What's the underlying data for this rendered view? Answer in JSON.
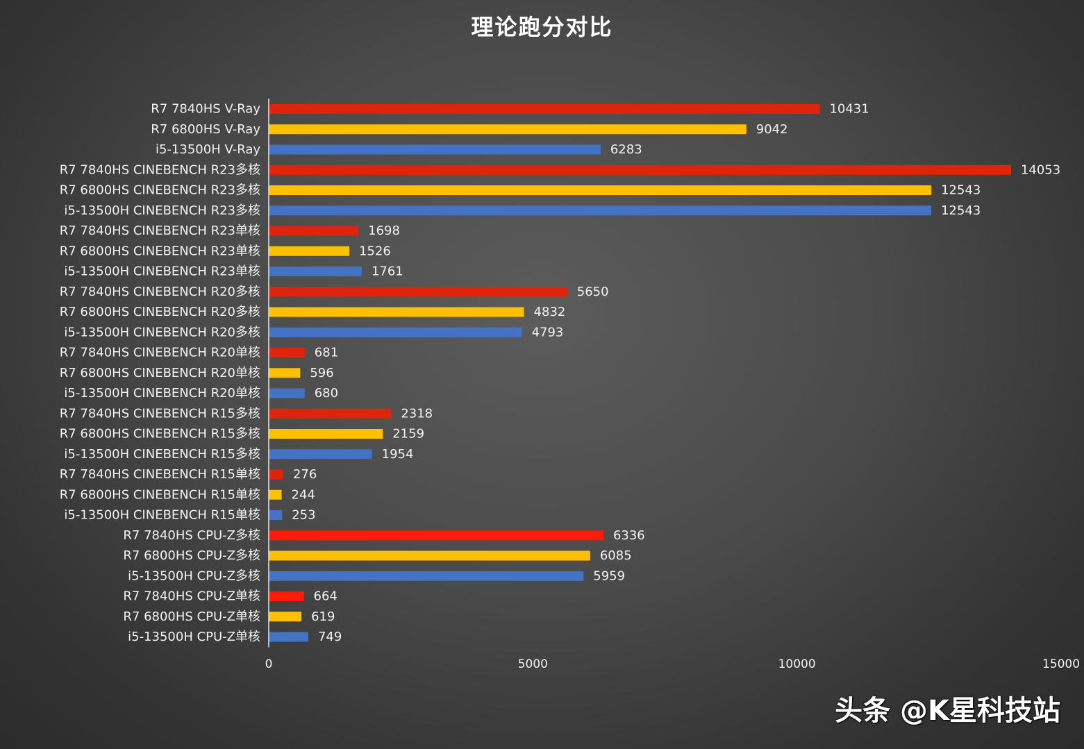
{
  "chart_data": {
    "type": "bar",
    "orientation": "horizontal",
    "title": "理论跑分对比",
    "xlim": [
      0,
      15000
    ],
    "x_ticks": [
      "0",
      "5000",
      "10000",
      "15000"
    ],
    "grid": false,
    "legend": "none",
    "colors": {
      "R7 7840HS": "#e0240c",
      "R7 7840HS (CPU-Z)": "#ff1a0a",
      "R7 6800HS": "#ffc000",
      "i5-13500H": "#4472c4"
    },
    "bars": [
      {
        "label": "R7 7840HS V-Ray",
        "value": 10431,
        "color": "#e0240c"
      },
      {
        "label": "R7 6800HS V-Ray",
        "value": 9042,
        "color": "#ffc000"
      },
      {
        "label": "i5-13500H V-Ray",
        "value": 6283,
        "color": "#4472c4"
      },
      {
        "label": "R7 7840HS CINEBENCH R23多核",
        "value": 14053,
        "color": "#e0240c"
      },
      {
        "label": "R7 6800HS CINEBENCH R23多核",
        "value": 12543,
        "color": "#ffc000"
      },
      {
        "label": "i5-13500H CINEBENCH R23多核",
        "value": 12543,
        "color": "#4472c4"
      },
      {
        "label": "R7 7840HS CINEBENCH R23单核",
        "value": 1698,
        "color": "#e0240c"
      },
      {
        "label": "R7 6800HS CINEBENCH R23单核",
        "value": 1526,
        "color": "#ffc000"
      },
      {
        "label": "i5-13500H CINEBENCH R23单核",
        "value": 1761,
        "color": "#4472c4"
      },
      {
        "label": "R7 7840HS CINEBENCH R20多核",
        "value": 5650,
        "color": "#e0240c"
      },
      {
        "label": "R7 6800HS CINEBENCH R20多核",
        "value": 4832,
        "color": "#ffc000"
      },
      {
        "label": "i5-13500H CINEBENCH R20多核",
        "value": 4793,
        "color": "#4472c4"
      },
      {
        "label": "R7 7840HS CINEBENCH R20单核",
        "value": 681,
        "color": "#e0240c"
      },
      {
        "label": "R7 6800HS CINEBENCH R20单核",
        "value": 596,
        "color": "#ffc000"
      },
      {
        "label": "i5-13500H CINEBENCH R20单核",
        "value": 680,
        "color": "#4472c4"
      },
      {
        "label": "R7 7840HS CINEBENCH R15多核",
        "value": 2318,
        "color": "#e0240c"
      },
      {
        "label": "R7 6800HS CINEBENCH R15多核",
        "value": 2159,
        "color": "#ffc000"
      },
      {
        "label": "i5-13500H CINEBENCH R15多核",
        "value": 1954,
        "color": "#4472c4"
      },
      {
        "label": "R7 7840HS CINEBENCH R15单核",
        "value": 276,
        "color": "#e0240c"
      },
      {
        "label": "R7 6800HS CINEBENCH R15单核",
        "value": 244,
        "color": "#ffc000"
      },
      {
        "label": "i5-13500H CINEBENCH R15单核",
        "value": 253,
        "color": "#4472c4"
      },
      {
        "label": "R7 7840HS CPU-Z多核",
        "value": 6336,
        "color": "#ff1a0a"
      },
      {
        "label": "R7 6800HS CPU-Z多核",
        "value": 6085,
        "color": "#ffc000"
      },
      {
        "label": "i5-13500H CPU-Z多核",
        "value": 5959,
        "color": "#4472c4"
      },
      {
        "label": "R7 7840HS CPU-Z单核",
        "value": 664,
        "color": "#ff1a0a"
      },
      {
        "label": "R7 6800HS CPU-Z单核",
        "value": 619,
        "color": "#ffc000"
      },
      {
        "label": "i5-13500H CPU-Z单核",
        "value": 749,
        "color": "#4472c4"
      }
    ]
  },
  "watermark": "头条 @K星科技站"
}
